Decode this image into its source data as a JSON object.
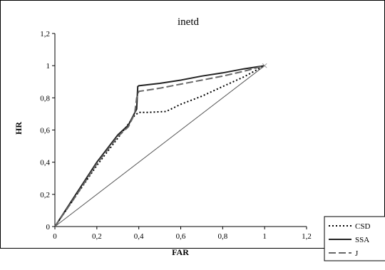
{
  "chart_data": {
    "type": "line",
    "title": "inetd",
    "xlabel": "FAR",
    "ylabel": "HR",
    "xlim": [
      0,
      1.2
    ],
    "ylim": [
      0,
      1.2
    ],
    "x_ticks": [
      "0",
      "0,2",
      "0,4",
      "0,6",
      "0,8",
      "1",
      "1,2"
    ],
    "y_ticks": [
      "0",
      "0,2",
      "0,4",
      "0,6",
      "0,8",
      "1",
      "1,2"
    ],
    "grid": false,
    "legend_position": "bottom-right",
    "series": [
      {
        "name": "CSD",
        "style": "dotted",
        "color": "#000000",
        "points": [
          [
            0,
            0
          ],
          [
            0.1,
            0.19
          ],
          [
            0.2,
            0.38
          ],
          [
            0.3,
            0.55
          ],
          [
            0.38,
            0.69
          ],
          [
            0.4,
            0.71
          ],
          [
            0.45,
            0.71
          ],
          [
            0.53,
            0.715
          ],
          [
            0.6,
            0.76
          ],
          [
            0.7,
            0.81
          ],
          [
            0.8,
            0.87
          ],
          [
            0.9,
            0.93
          ],
          [
            1,
            1
          ]
        ]
      },
      {
        "name": "SSA",
        "style": "solid",
        "color": "#222222",
        "points": [
          [
            0,
            0
          ],
          [
            0.1,
            0.2
          ],
          [
            0.2,
            0.4
          ],
          [
            0.3,
            0.57
          ],
          [
            0.35,
            0.63
          ],
          [
            0.39,
            0.73
          ],
          [
            0.395,
            0.87
          ],
          [
            0.4,
            0.875
          ],
          [
            0.5,
            0.89
          ],
          [
            0.6,
            0.91
          ],
          [
            0.7,
            0.935
          ],
          [
            0.8,
            0.955
          ],
          [
            0.9,
            0.98
          ],
          [
            1,
            1
          ]
        ]
      },
      {
        "name": "J",
        "style": "dashed",
        "color": "#666666",
        "points": [
          [
            0,
            0
          ],
          [
            0.1,
            0.19
          ],
          [
            0.2,
            0.39
          ],
          [
            0.3,
            0.56
          ],
          [
            0.35,
            0.62
          ],
          [
            0.38,
            0.7
          ],
          [
            0.39,
            0.8
          ],
          [
            0.4,
            0.84
          ],
          [
            0.5,
            0.86
          ],
          [
            0.6,
            0.885
          ],
          [
            0.7,
            0.91
          ],
          [
            0.8,
            0.935
          ],
          [
            0.9,
            0.965
          ],
          [
            1,
            1
          ]
        ]
      },
      {
        "name": "",
        "style": "thin",
        "color": "#555555",
        "points": [
          [
            0,
            0
          ],
          [
            1,
            1
          ]
        ]
      }
    ]
  }
}
